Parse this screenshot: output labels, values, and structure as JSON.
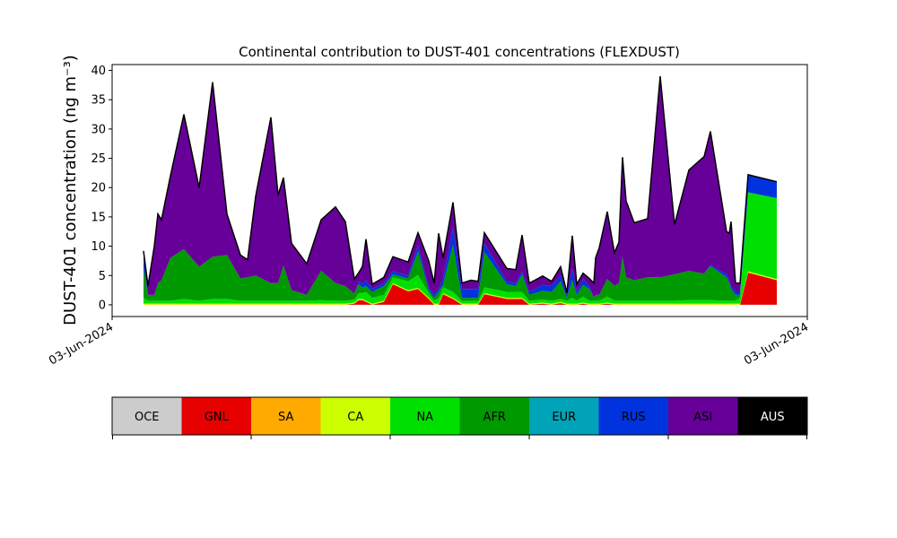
{
  "chart_data": {
    "type": "stacked_area",
    "title": "Continental contribution to DUST-401 concentrations (FLEXDUST)",
    "ylabel": "DUST-401 concentration (ng m⁻³)",
    "xlim": [
      0,
      775
    ],
    "xticks": [
      {
        "value": 0,
        "label": "03-Jun-2024"
      },
      {
        "value": 775,
        "label": "03-Jun-2024"
      }
    ],
    "ylim": [
      -2,
      41
    ],
    "yticks": [
      0,
      5,
      10,
      15,
      20,
      25,
      30,
      35,
      40
    ],
    "x": [
      35,
      40,
      47,
      51,
      55,
      65,
      80,
      97,
      112,
      128,
      143,
      151,
      160,
      177,
      185,
      191,
      200,
      217,
      233,
      249,
      260,
      270,
      275,
      279,
      283,
      290,
      303,
      313,
      330,
      341,
      353,
      359,
      364,
      369,
      380,
      390,
      400,
      408,
      415,
      440,
      450,
      457,
      465,
      480,
      490,
      500,
      507,
      513,
      518,
      525,
      532,
      537,
      539,
      543,
      552,
      560,
      565,
      569,
      573,
      582,
      597,
      611,
      627,
      643,
      660,
      667,
      685,
      688,
      690,
      695,
      700,
      709,
      741
    ],
    "series": [
      {
        "name": "OCE",
        "color": "#cccccc",
        "values": [
          0,
          0,
          0,
          0,
          0,
          0,
          0,
          0,
          0,
          0,
          0,
          0,
          0,
          0,
          0,
          0,
          0,
          0,
          0,
          0,
          0,
          0,
          0,
          0,
          0,
          0,
          0,
          0,
          0,
          0,
          0,
          0,
          0,
          0,
          0,
          0,
          0,
          0,
          0,
          0,
          0,
          0,
          0,
          0,
          0,
          0,
          0,
          0,
          0,
          0,
          0,
          0,
          0,
          0,
          0,
          0,
          0,
          0,
          0,
          0,
          0,
          0,
          0,
          0,
          0,
          0,
          0,
          0,
          0,
          0,
          0,
          0,
          0
        ]
      },
      {
        "name": "GNL",
        "color": "#e60000",
        "values": [
          0,
          0,
          0,
          0,
          0,
          0,
          0,
          0,
          0,
          0,
          0,
          0,
          0,
          0,
          0,
          0,
          0,
          0,
          0,
          0,
          0,
          0.2,
          0.8,
          0.8,
          0.5,
          0,
          0.5,
          3.5,
          2.3,
          2.7,
          1,
          0,
          0,
          1.8,
          1,
          0,
          0,
          0,
          1.8,
          1,
          1,
          1,
          0,
          0.2,
          0,
          0.3,
          0,
          0,
          0,
          0.2,
          0,
          0,
          0,
          0,
          0.2,
          0,
          0,
          0,
          0,
          0,
          0,
          0,
          0,
          0,
          0,
          0,
          0,
          0,
          0,
          0,
          0,
          5.5,
          4.2
        ]
      },
      {
        "name": "SA",
        "color": "#ffaa00",
        "values": [
          0,
          0,
          0,
          0,
          0,
          0,
          0,
          0,
          0,
          0,
          0,
          0,
          0,
          0,
          0,
          0,
          0,
          0,
          0,
          0,
          0,
          0,
          0,
          0,
          0,
          0,
          0,
          0,
          0,
          0,
          0,
          0,
          0,
          0,
          0,
          0,
          0,
          0,
          0,
          0,
          0,
          0,
          0,
          0,
          0,
          0,
          0,
          0,
          0,
          0,
          0,
          0,
          0,
          0,
          0,
          0,
          0,
          0,
          0,
          0,
          0,
          0,
          0,
          0,
          0,
          0,
          0,
          0,
          0,
          0,
          0,
          0,
          0
        ]
      },
      {
        "name": "CA",
        "color": "#ccff00",
        "values": [
          0.2,
          0.2,
          0.2,
          0.2,
          0.2,
          0.2,
          0.2,
          0.2,
          0.2,
          0.2,
          0.2,
          0.2,
          0.2,
          0.2,
          0.2,
          0.2,
          0.2,
          0.2,
          0.2,
          0.2,
          0.2,
          0.2,
          0.2,
          0.2,
          0.2,
          0.2,
          0.2,
          0.2,
          0.2,
          0.2,
          0.2,
          0.2,
          0.2,
          0.2,
          0.2,
          0.2,
          0.2,
          0.2,
          0.2,
          0.2,
          0.2,
          0.2,
          0.2,
          0.2,
          0.2,
          0.2,
          0.2,
          0.2,
          0.2,
          0.2,
          0.2,
          0.2,
          0.2,
          0.2,
          0.2,
          0.2,
          0.2,
          0.2,
          0.2,
          0.2,
          0.2,
          0.2,
          0.2,
          0.2,
          0.2,
          0.2,
          0.2,
          0.2,
          0.2,
          0.2,
          0.2,
          0.2,
          0.2
        ]
      },
      {
        "name": "NA",
        "color": "#00e000",
        "values": [
          1,
          0.5,
          0.5,
          0.5,
          0.5,
          0.5,
          0.8,
          0.5,
          0.8,
          0.8,
          0.5,
          0.5,
          0.5,
          0.5,
          0.5,
          0.5,
          0.5,
          0.5,
          0.6,
          0.5,
          0.5,
          0.5,
          1,
          1,
          1.5,
          1,
          1,
          1,
          1.5,
          2.2,
          0.8,
          0.5,
          1,
          1,
          1,
          0.5,
          0.5,
          0.5,
          1,
          1,
          1,
          1,
          0.5,
          0.5,
          0.5,
          0.5,
          0.5,
          1,
          0.5,
          1,
          0.5,
          0.5,
          0.5,
          0.5,
          1,
          0.5,
          0.5,
          0.5,
          0.5,
          0.5,
          0.5,
          0.5,
          0.5,
          0.6,
          0.6,
          0.6,
          0.5,
          0.5,
          0.5,
          0.5,
          1,
          13.5,
          13.8
        ]
      },
      {
        "name": "AFR",
        "color": "#009900",
        "values": [
          5,
          1,
          1,
          3,
          3.5,
          7.3,
          8.5,
          5.8,
          7.2,
          7.5,
          3.8,
          4,
          4.3,
          3,
          3,
          6,
          1.8,
          1,
          5,
          3,
          2.5,
          1,
          1.5,
          1,
          1,
          1,
          1.5,
          0.5,
          0.5,
          4,
          0.5,
          0.5,
          1,
          0.5,
          8,
          0.5,
          0.5,
          0.5,
          6,
          1.3,
          1,
          3,
          1,
          1.5,
          1.5,
          3,
          0.5,
          3,
          1,
          2,
          2,
          0.5,
          1,
          1,
          3,
          2.5,
          3,
          7.5,
          4,
          3.5,
          4,
          4,
          4.5,
          5,
          4.5,
          5.8,
          4,
          3,
          2,
          1,
          0.5,
          0,
          0
        ]
      },
      {
        "name": "EUR",
        "color": "#00a3b8",
        "values": [
          0,
          0,
          0,
          0,
          0,
          0,
          0,
          0,
          0,
          0,
          0,
          0,
          0,
          0,
          0,
          0,
          0,
          0,
          0,
          0,
          0,
          0,
          0,
          0,
          0,
          0,
          0,
          0,
          0,
          0,
          0,
          0,
          0,
          0,
          0,
          0,
          0,
          0,
          0,
          0,
          0,
          0,
          0,
          0,
          0,
          0,
          0,
          0,
          0,
          0,
          0,
          0,
          0,
          0,
          0,
          0,
          0,
          0,
          0,
          0,
          0,
          0,
          0,
          0,
          0,
          0,
          0,
          0,
          0,
          0,
          0,
          0,
          0
        ]
      },
      {
        "name": "RUS",
        "color": "#0033dd",
        "values": [
          2,
          0,
          0,
          0,
          0,
          0,
          0,
          0,
          0,
          0,
          0,
          0,
          0,
          0,
          0,
          0,
          0,
          0,
          0,
          0,
          0,
          0,
          0.5,
          0.5,
          1,
          0.5,
          0.5,
          0.5,
          0.5,
          1,
          0.5,
          0.5,
          0.5,
          1,
          3,
          1.5,
          1.5,
          1.5,
          1.5,
          0.5,
          0.5,
          0.5,
          0.5,
          1,
          1,
          1,
          0.5,
          2,
          0.5,
          1,
          0.5,
          0,
          0,
          0,
          0,
          0,
          0,
          0,
          0,
          0,
          0,
          0,
          0,
          0,
          0,
          0.2,
          0.5,
          0.5,
          0.5,
          0.5,
          0.5,
          3,
          2.8
        ]
      },
      {
        "name": "ASI",
        "color": "#660099",
        "values": [
          1,
          1.5,
          8.3,
          11.8,
          10.3,
          14,
          23,
          13.5,
          29.8,
          7,
          4,
          3,
          13.5,
          28.3,
          15,
          15,
          8,
          5.3,
          8.7,
          13,
          11,
          2.5,
          1.5,
          3,
          7,
          0.8,
          1,
          2.5,
          2.3,
          2.2,
          4.5,
          2,
          9.5,
          3.5,
          4.3,
          1,
          1.5,
          1.3,
          1.8,
          2.2,
          2.3,
          6.2,
          1.5,
          1.5,
          0.8,
          1.5,
          0.3,
          5.6,
          1.3,
          1,
          1.3,
          2.5,
          6.3,
          8,
          11.5,
          5.7,
          7,
          17,
          13,
          9.8,
          10,
          34.3,
          8.5,
          17.2,
          20,
          22.8,
          7.3,
          8,
          11,
          1.5,
          1.5,
          0,
          0
        ]
      },
      {
        "name": "AUS",
        "color": "#000000",
        "values": [
          0,
          0,
          0,
          0,
          0,
          0,
          0,
          0,
          0,
          0,
          0,
          0,
          0,
          0,
          0,
          0,
          0,
          0,
          0,
          0,
          0,
          0,
          0,
          0,
          0,
          0,
          0,
          0,
          0,
          0,
          0,
          0,
          0,
          0,
          0,
          0,
          0,
          0,
          0,
          0,
          0,
          0,
          0,
          0,
          0,
          0,
          0,
          0,
          0,
          0,
          0,
          0,
          0,
          0,
          0,
          0,
          0,
          0,
          0,
          0,
          0,
          0,
          0,
          0,
          0,
          0,
          0,
          0,
          0,
          0,
          0,
          0,
          0
        ]
      }
    ]
  }
}
